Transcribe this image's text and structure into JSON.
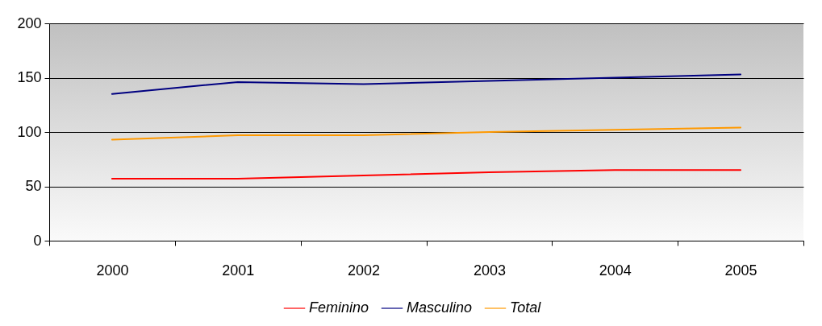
{
  "chart_data": {
    "type": "line",
    "categories": [
      "2000",
      "2001",
      "2002",
      "2003",
      "2004",
      "2005"
    ],
    "series": [
      {
        "name": "Feminino",
        "color": "#ff0000",
        "values": [
          57,
          57,
          60,
          63,
          65,
          65
        ]
      },
      {
        "name": "Masculino",
        "color": "#000080",
        "values": [
          135,
          146,
          144,
          147,
          150,
          153
        ]
      },
      {
        "name": "Total",
        "color": "#ff9900",
        "values": [
          93,
          97,
          97,
          100,
          102,
          104
        ]
      }
    ],
    "ylim": [
      0,
      200
    ],
    "yticks": [
      0,
      50,
      100,
      150,
      200
    ],
    "grid": "y",
    "legend": "bottom",
    "marker": "none",
    "line_style": "solid"
  }
}
